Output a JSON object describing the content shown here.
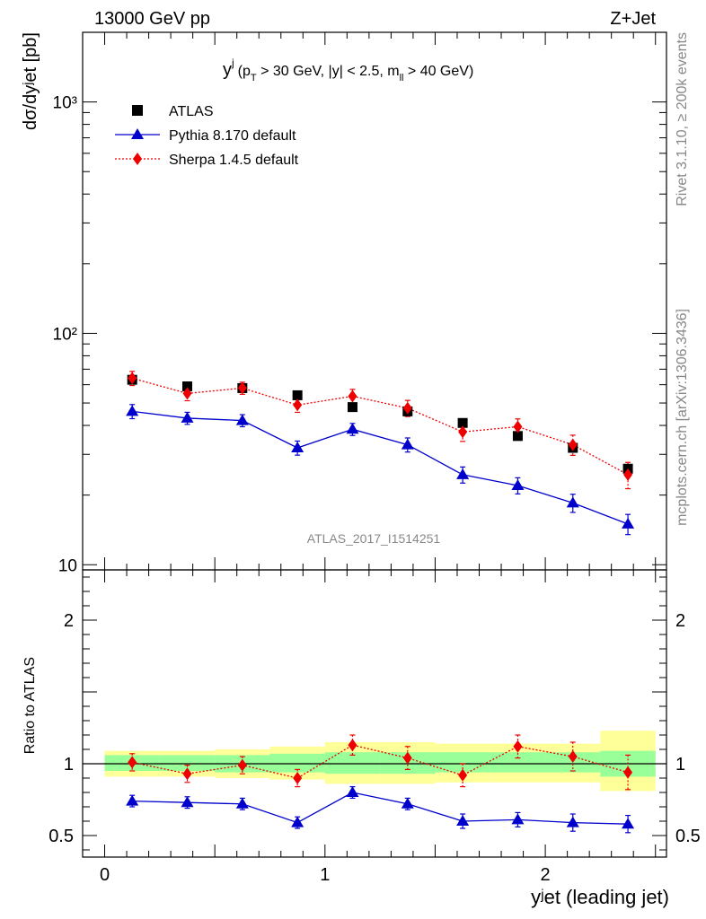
{
  "header": {
    "left": "13000 GeV pp",
    "right": "Z+Jet"
  },
  "side_text": {
    "rivet": "Rivet 3.1.10, ≥ 200k events",
    "mcplots": "mcplots.cern.ch [arXiv:1306.3436]"
  },
  "watermark": "ATLAS_2017_I1514251",
  "cut_label": {
    "y": "y",
    "y_sup": "j",
    "pre": "(p",
    "pt_sub": "T",
    "mid": " > 30 GeV, |y| < 2.5, m",
    "m_sub": "ll",
    "post": " > 40 GeV)"
  },
  "main_ylabel": "dσ/dyʲet [pb]",
  "ratio_ylabel": "Ratio to ATLAS",
  "xlabel": "yʲet (leading jet)",
  "legend": [
    {
      "name": "ATLAS",
      "color": "#000000",
      "marker": "square"
    },
    {
      "name": "Pythia 8.170 default",
      "color": "#0000cc",
      "marker": "triangle"
    },
    {
      "name": "Sherpa 1.4.5 default",
      "color": "#ee0000",
      "marker": "diamond"
    }
  ],
  "chart_data": [
    {
      "type": "scatter",
      "panel": "main",
      "yscale": "log",
      "xlim": [
        -0.1,
        2.55
      ],
      "ylim": [
        9.5,
        2000
      ],
      "y_ticks": [
        {
          "v": 10,
          "label": "10"
        },
        {
          "v": 100,
          "label": "10²"
        },
        {
          "v": 1000,
          "label": "10³"
        }
      ],
      "x": [
        0.125,
        0.375,
        0.625,
        0.875,
        1.125,
        1.375,
        1.625,
        1.875,
        2.125,
        2.375
      ],
      "bin_edges": [
        0,
        0.25,
        0.5,
        0.75,
        1.0,
        1.25,
        1.5,
        1.75,
        2.0,
        2.25,
        2.5
      ],
      "series": [
        {
          "name": "ATLAS",
          "values": [
            63,
            59,
            58,
            54,
            48,
            46,
            41,
            36,
            32,
            26
          ]
        },
        {
          "name": "Pythia 8.170 default",
          "values": [
            46,
            43,
            42,
            32,
            38.5,
            33,
            24.5,
            22,
            18.5,
            15
          ],
          "err": [
            0.07,
            0.06,
            0.06,
            0.07,
            0.06,
            0.07,
            0.08,
            0.08,
            0.09,
            0.1
          ]
        },
        {
          "name": "Sherpa 1.4.5 default",
          "values": [
            64,
            55,
            58,
            49,
            53.5,
            47.5,
            37.5,
            39.5,
            33,
            24.5
          ],
          "err": [
            0.07,
            0.07,
            0.06,
            0.07,
            0.07,
            0.08,
            0.09,
            0.08,
            0.1,
            0.13
          ]
        }
      ]
    },
    {
      "type": "scatter",
      "panel": "ratio",
      "ylim": [
        0.35,
        2.35
      ],
      "y_ticks": [
        {
          "v": 0.5,
          "label": "0.5"
        },
        {
          "v": 1,
          "label": "1"
        },
        {
          "v": 2,
          "label": "2"
        }
      ],
      "x_ticks": [
        {
          "v": 0,
          "label": "0"
        },
        {
          "v": 1,
          "label": "1"
        },
        {
          "v": 2,
          "label": "2"
        }
      ],
      "bin_edges": [
        0,
        0.25,
        0.5,
        0.75,
        1.0,
        1.25,
        1.5,
        1.75,
        2.0,
        2.25,
        2.5
      ],
      "band_inner": [
        [
          0.95,
          1.06
        ],
        [
          0.95,
          1.06
        ],
        [
          0.94,
          1.06
        ],
        [
          0.94,
          1.07
        ],
        [
          0.93,
          1.08
        ],
        [
          0.93,
          1.08
        ],
        [
          0.94,
          1.08
        ],
        [
          0.94,
          1.08
        ],
        [
          0.94,
          1.08
        ],
        [
          0.91,
          1.09
        ]
      ],
      "band_outer": [
        [
          0.91,
          1.09
        ],
        [
          0.91,
          1.09
        ],
        [
          0.9,
          1.1
        ],
        [
          0.89,
          1.12
        ],
        [
          0.86,
          1.15
        ],
        [
          0.86,
          1.15
        ],
        [
          0.87,
          1.14
        ],
        [
          0.87,
          1.14
        ],
        [
          0.87,
          1.14
        ],
        [
          0.81,
          1.23
        ]
      ],
      "x": [
        0.125,
        0.375,
        0.625,
        0.875,
        1.125,
        1.375,
        1.625,
        1.875,
        2.125,
        2.375
      ],
      "series": [
        {
          "name": "Pythia 8.170 default",
          "values": [
            0.74,
            0.73,
            0.72,
            0.59,
            0.8,
            0.72,
            0.6,
            0.61,
            0.59,
            0.58
          ],
          "err": [
            0.04,
            0.04,
            0.04,
            0.04,
            0.04,
            0.04,
            0.05,
            0.05,
            0.06,
            0.06
          ]
        },
        {
          "name": "Sherpa 1.4.5 default",
          "values": [
            1.01,
            0.93,
            0.99,
            0.9,
            1.13,
            1.04,
            0.92,
            1.12,
            1.05,
            0.94
          ],
          "err": [
            0.06,
            0.06,
            0.06,
            0.06,
            0.07,
            0.08,
            0.08,
            0.08,
            0.1,
            0.12
          ]
        }
      ]
    }
  ]
}
